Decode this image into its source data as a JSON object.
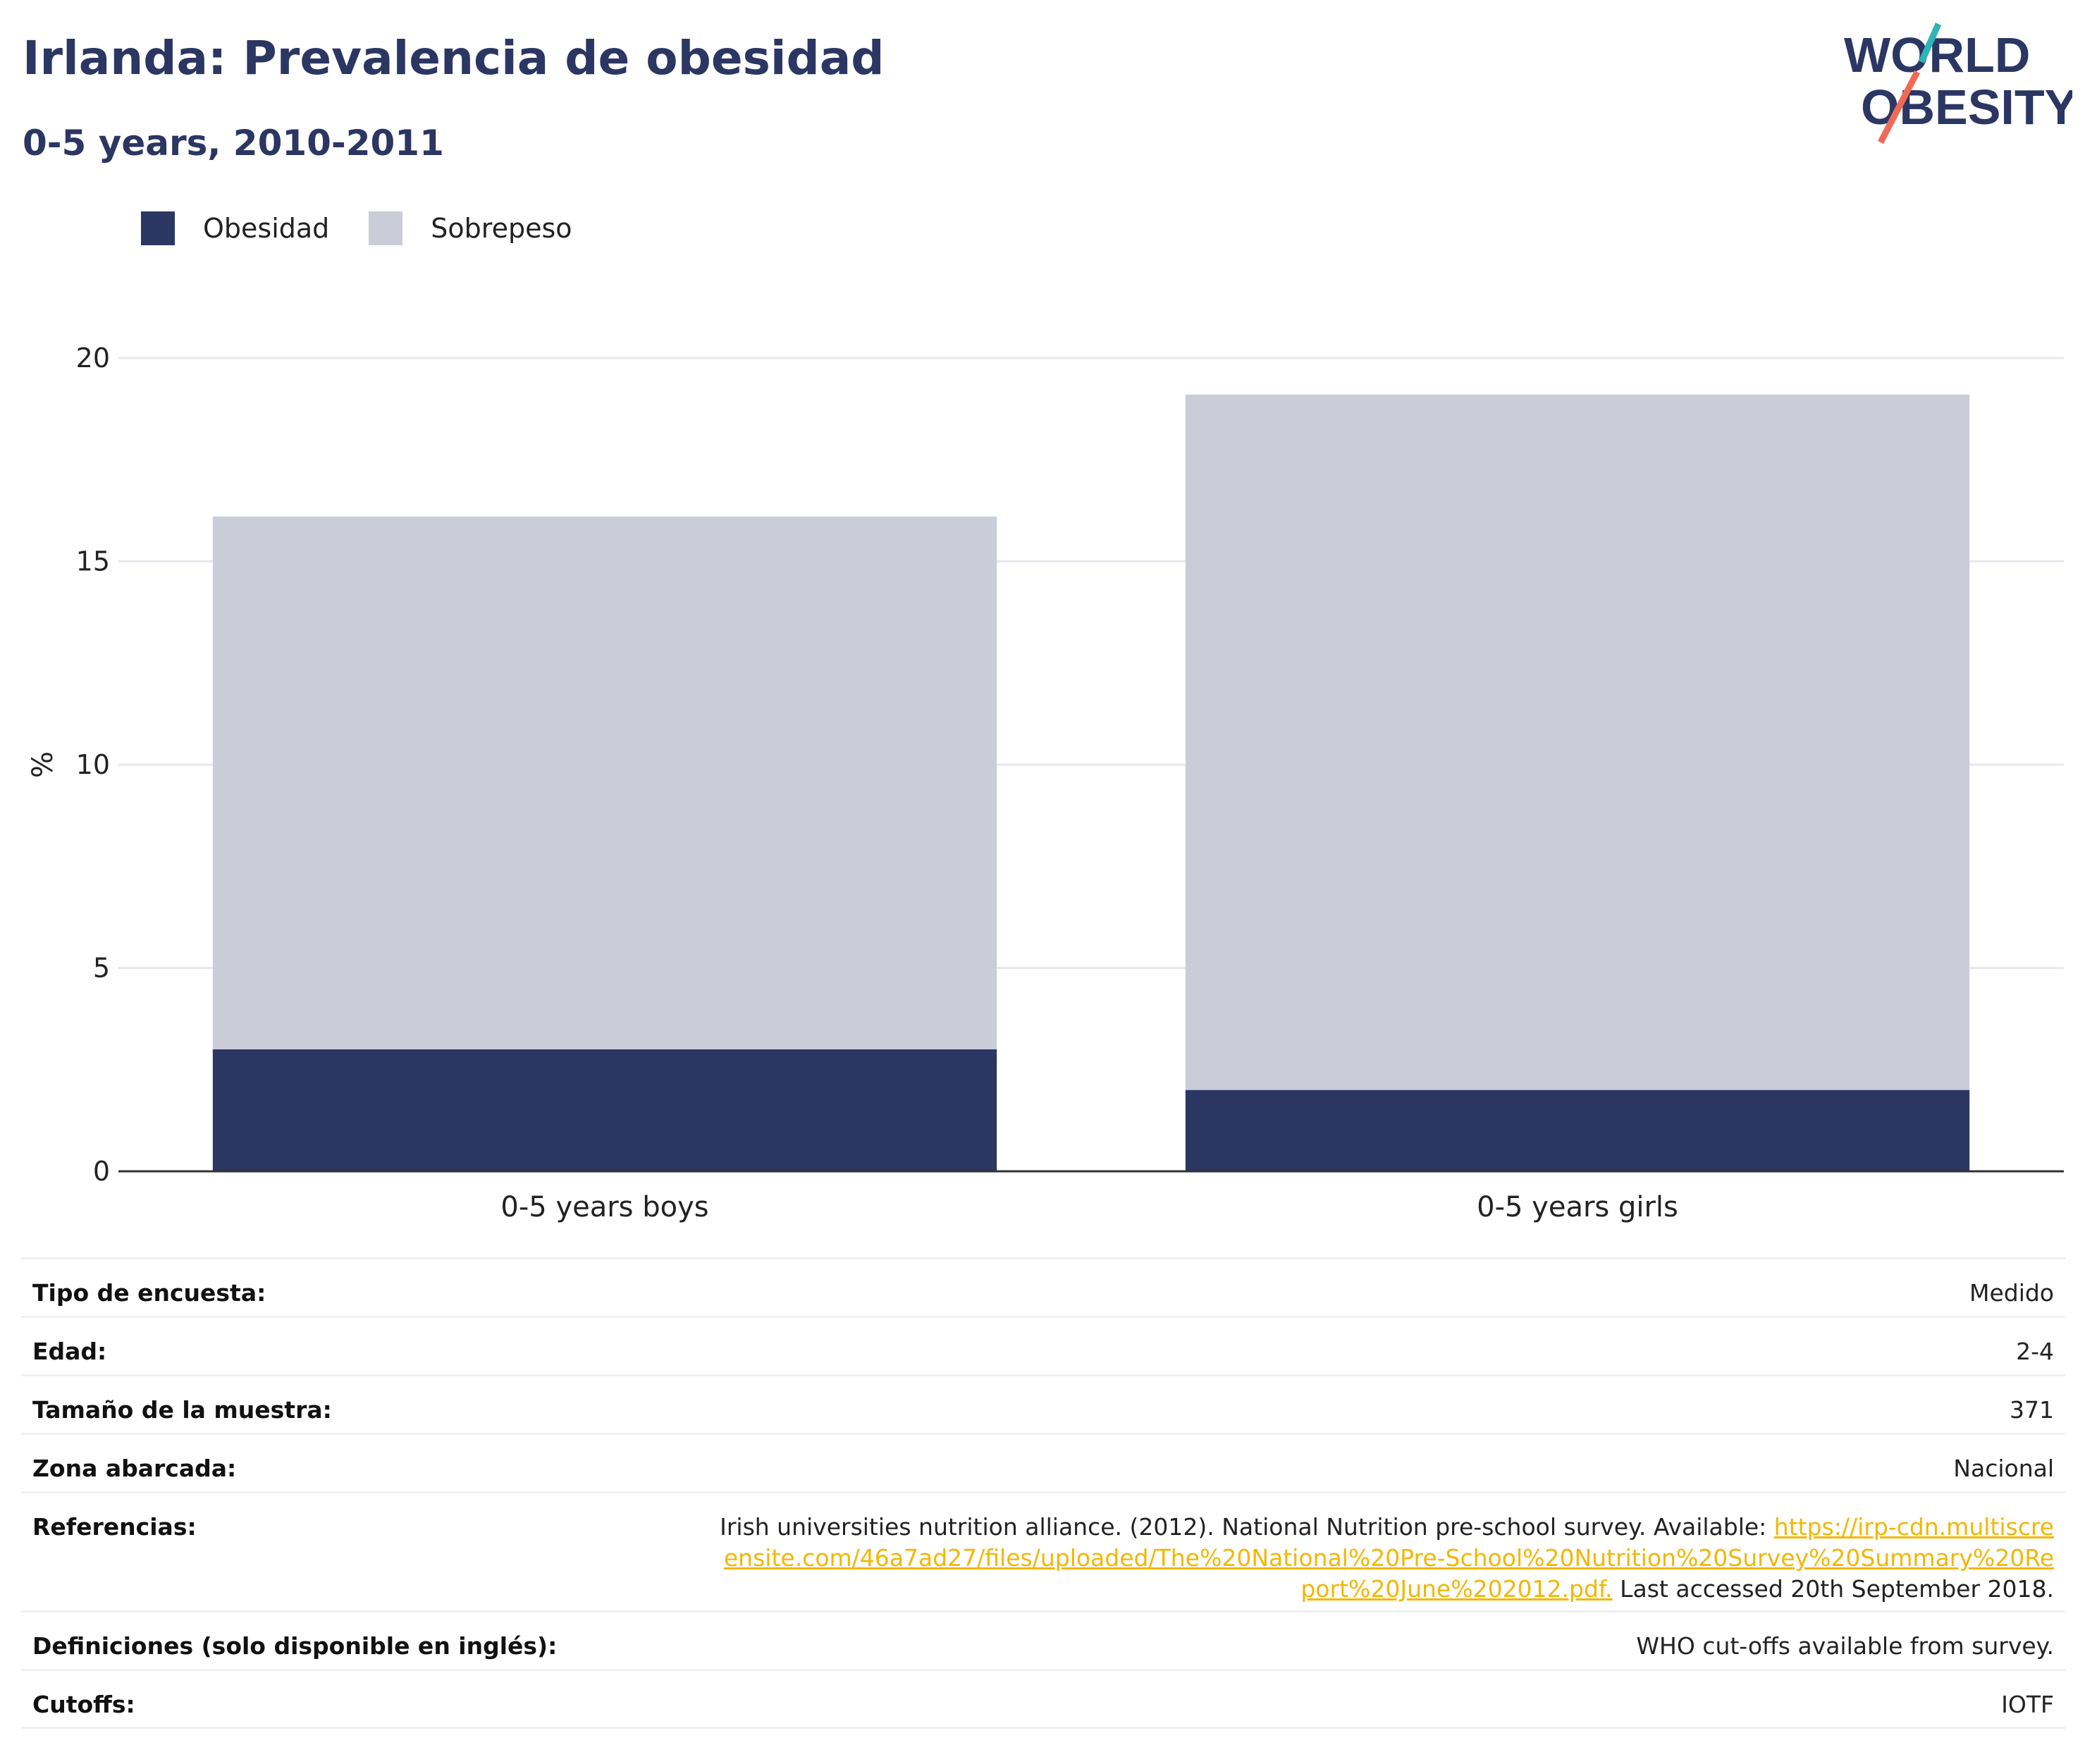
{
  "header": {
    "title": "Irlanda: Prevalencia de obesidad",
    "subtitle": "0-5 years, 2010-2011"
  },
  "logo": {
    "line1": "WORLD",
    "line2": "OBESITY",
    "icon": "world-obesity-logo"
  },
  "legend": [
    {
      "label": "Obesidad",
      "color": "#2b3663"
    },
    {
      "label": "Sobrepeso",
      "color": "#cacdd8"
    }
  ],
  "chart_data": {
    "type": "bar",
    "stacked": true,
    "categories": [
      "0-5 years boys",
      "0-5 years girls"
    ],
    "series": [
      {
        "name": "Obesidad",
        "values": [
          3.0,
          2.0
        ],
        "color": "#2b3663"
      },
      {
        "name": "Sobrepeso",
        "values": [
          13.1,
          17.1
        ],
        "color": "#cacdd8"
      }
    ],
    "ylabel": "%",
    "ylim": [
      0,
      20
    ],
    "yticks": [
      0,
      5,
      10,
      15,
      20
    ],
    "grid": true,
    "legend_position": "top-left"
  },
  "info": {
    "survey_type": {
      "label": "Tipo de encuesta:",
      "value": "Medido"
    },
    "age": {
      "label": "Edad:",
      "value": "2-4"
    },
    "sample_size": {
      "label": "Tamaño de la muestra:",
      "value": "371"
    },
    "coverage": {
      "label": "Zona abarcada:",
      "value": "Nacional"
    },
    "references": {
      "label": "Referencias:",
      "text_before": "Irish universities nutrition alliance. (2012). National Nutrition pre-school survey. Available: ",
      "link_text": "https://irp-cdn.multiscreensite.com/46a7ad27/files/uploaded/The%20National%20Pre-School%20Nutrition%20Survey%20Summary%20Report%20June%202012.pdf.",
      "text_after": " Last accessed 20th September 2018."
    },
    "definitions": {
      "label": "Definiciones (solo disponible en inglés):",
      "value": "WHO cut-offs available from survey."
    },
    "cutoffs": {
      "label": "Cutoffs:",
      "value": "IOTF"
    }
  }
}
